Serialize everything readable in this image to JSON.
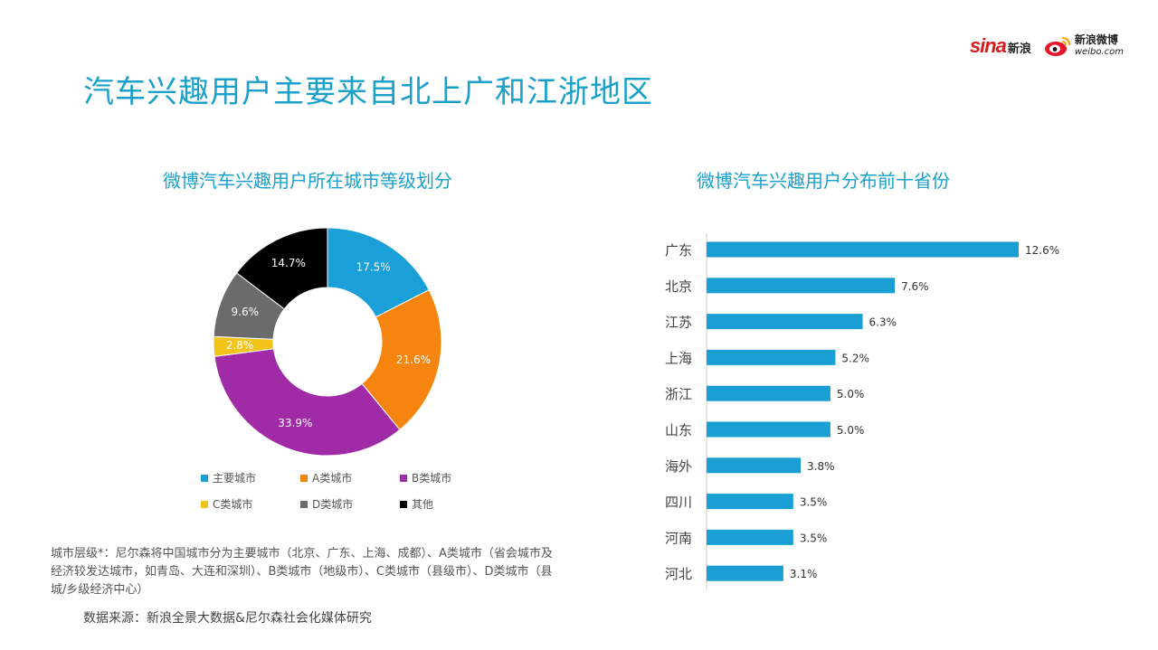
{
  "title": "汽车兴趣用户主要来自北上广和江浙地区",
  "logos": {
    "sina_word": "sina",
    "sina_cn": "新浪",
    "weibo_cn": "新浪微博",
    "weibo_url": "weibo.com"
  },
  "chart_data": [
    {
      "type": "pie",
      "title": "微博汽车兴趣用户所在城市等级划分",
      "slices": [
        {
          "name": "主要城市",
          "value": 17.5,
          "label": "17.5%",
          "color": "#1b9fd8",
          "text_color": "#ffffff"
        },
        {
          "name": "A类城市",
          "value": 21.6,
          "label": "21.6%",
          "color": "#f5850f",
          "text_color": "#ffffff"
        },
        {
          "name": "B类城市",
          "value": 33.9,
          "label": "33.9%",
          "color": "#a12ba6",
          "text_color": "#ffffff"
        },
        {
          "name": "C类城市",
          "value": 2.8,
          "label": "2.8%",
          "color": "#f2c318",
          "text_color": "#ffffff"
        },
        {
          "name": "D类城市",
          "value": 9.6,
          "label": "9.6%",
          "color": "#6b6b6b",
          "text_color": "#ffffff"
        },
        {
          "name": "其他",
          "value": 14.7,
          "label": "14.7%",
          "color": "#000000",
          "text_color": "#ffffff"
        }
      ],
      "legend": [
        "主要城市",
        "A类城市",
        "B类城市",
        "C类城市",
        "D类城市",
        "其他"
      ]
    },
    {
      "type": "bar",
      "orientation": "horizontal",
      "title": "微博汽车兴趣用户分布前十省份",
      "color": "#1a9fd4",
      "categories": [
        "广东",
        "北京",
        "江苏",
        "上海",
        "浙江",
        "山东",
        "海外",
        "四川",
        "河南",
        "河北"
      ],
      "values": [
        12.6,
        7.6,
        6.3,
        5.2,
        5.0,
        5.0,
        3.8,
        3.5,
        3.5,
        3.1
      ],
      "labels": [
        "12.6%",
        "7.6%",
        "6.3%",
        "5.2%",
        "5.0%",
        "5.0%",
        "3.8%",
        "3.5%",
        "3.5%",
        "3.1%"
      ]
    }
  ],
  "footnote": "城市层级*：尼尔森将中国城市分为主要城市（北京、广东、上海、成都）、A类城市（省会城市及经济较发达城市，如青岛、大连和深圳）、B类城市（地级市）、C类城市（县级市）、D类城市（县城/乡级经济中心）",
  "source": "数据来源：新浪全景大数据&尼尔森社会化媒体研究"
}
